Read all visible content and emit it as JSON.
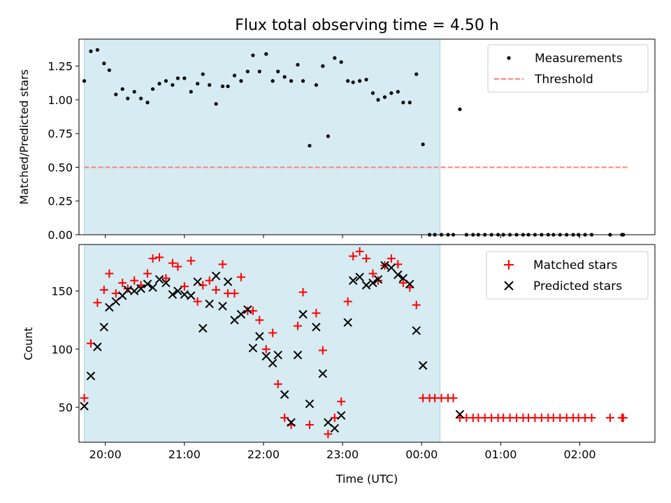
{
  "chart_data": [
    {
      "type": "scatter",
      "title": "Flux total observing time = 4.50 h",
      "xlabel": "",
      "ylabel": "Matched/Predicted stars",
      "ylim": [
        0,
        1.45
      ],
      "yticks": [
        0.0,
        0.25,
        0.5,
        0.75,
        1.0,
        1.25
      ],
      "ytick_labels": [
        "0.00",
        "0.25",
        "0.50",
        "0.75",
        "1.00",
        "1.25"
      ],
      "xlim": [
        "19:40",
        "02:57"
      ],
      "legend_position": "top-right",
      "observing_window": [
        "19:44",
        "00:14"
      ],
      "series": [
        {
          "name": "Measurements",
          "marker": "dot",
          "color": "#000000",
          "x": [
            "19:44",
            "19:49",
            "19:54",
            "19:59",
            "20:03",
            "20:08",
            "20:13",
            "20:17",
            "20:22",
            "20:27",
            "20:32",
            "20:36",
            "20:41",
            "20:46",
            "20:51",
            "20:55",
            "21:00",
            "21:05",
            "21:10",
            "21:14",
            "21:19",
            "21:24",
            "21:29",
            "21:33",
            "21:38",
            "21:43",
            "21:48",
            "21:52",
            "21:57",
            "22:02",
            "22:07",
            "22:11",
            "22:16",
            "22:21",
            "22:26",
            "22:30",
            "22:35",
            "22:40",
            "22:45",
            "22:49",
            "22:54",
            "22:59",
            "23:04",
            "23:08",
            "23:13",
            "23:18",
            "23:23",
            "23:27",
            "23:32",
            "23:37",
            "23:42",
            "23:46",
            "23:51",
            "23:56",
            "00:01",
            "00:06",
            "00:10",
            "00:15",
            "00:20",
            "00:24",
            "00:29",
            "00:34",
            "00:39",
            "00:43",
            "00:48",
            "00:53",
            "00:58",
            "01:02",
            "01:07",
            "01:12",
            "01:17",
            "01:21",
            "01:26",
            "01:31",
            "01:36",
            "01:40",
            "01:45",
            "01:50",
            "01:55",
            "01:59",
            "02:04",
            "02:09",
            "02:23",
            "02:32",
            "02:33"
          ],
          "values": [
            1.14,
            1.36,
            1.37,
            1.27,
            1.22,
            1.04,
            1.08,
            1.01,
            1.06,
            1.01,
            0.98,
            1.08,
            1.12,
            1.14,
            1.11,
            1.16,
            1.16,
            1.06,
            1.12,
            1.19,
            1.11,
            0.97,
            1.1,
            1.1,
            1.18,
            1.14,
            1.21,
            1.33,
            1.21,
            1.34,
            1.14,
            1.21,
            1.17,
            1.14,
            1.26,
            1.14,
            0.66,
            1.11,
            1.25,
            0.73,
            1.31,
            1.28,
            1.14,
            1.13,
            1.14,
            1.15,
            1.05,
            1.0,
            1.02,
            1.05,
            1.06,
            0.98,
            0.98,
            1.19,
            0.67,
            0.0,
            0.0,
            0.0,
            0.0,
            0.0,
            0.93,
            0.0,
            0.0,
            0.0,
            0.0,
            0.0,
            0.0,
            0.0,
            0.0,
            0.0,
            0.0,
            0.0,
            0.0,
            0.0,
            0.0,
            0.0,
            0.0,
            0.0,
            0.0,
            0.0,
            0.0,
            0.0,
            0.0,
            0.0,
            0.0
          ]
        },
        {
          "name": "Threshold",
          "marker": "dashed-line",
          "color": "#ff7f7f",
          "x": [
            "19:44",
            "02:36"
          ],
          "values": [
            0.5,
            0.5
          ]
        }
      ]
    },
    {
      "type": "scatter",
      "title": "",
      "xlabel": "Time (UTC)",
      "ylabel": "Count",
      "ylim": [
        20,
        190
      ],
      "yticks": [
        50,
        100,
        150
      ],
      "ytick_labels": [
        "50",
        "100",
        "150"
      ],
      "xticks": [
        "20:00",
        "21:00",
        "22:00",
        "23:00",
        "00:00",
        "01:00",
        "02:00"
      ],
      "xtick_labels": [
        "20:00",
        "21:00",
        "22:00",
        "23:00",
        "00:00",
        "01:00",
        "02:00"
      ],
      "xlim": [
        "19:40",
        "02:57"
      ],
      "legend_position": "top-right",
      "observing_window": [
        "19:44",
        "00:14"
      ],
      "series": [
        {
          "name": "Matched stars",
          "marker": "plus",
          "color": "#ff0000",
          "x": [
            "19:44",
            "19:49",
            "19:54",
            "19:59",
            "20:03",
            "20:08",
            "20:13",
            "20:17",
            "20:22",
            "20:27",
            "20:32",
            "20:36",
            "20:41",
            "20:46",
            "20:51",
            "20:55",
            "21:00",
            "21:05",
            "21:10",
            "21:14",
            "21:19",
            "21:24",
            "21:29",
            "21:33",
            "21:38",
            "21:43",
            "21:48",
            "21:52",
            "21:57",
            "22:02",
            "22:07",
            "22:11",
            "22:16",
            "22:21",
            "22:26",
            "22:30",
            "22:35",
            "22:40",
            "22:45",
            "22:49",
            "22:54",
            "22:59",
            "23:04",
            "23:08",
            "23:13",
            "23:18",
            "23:23",
            "23:27",
            "23:32",
            "23:37",
            "23:42",
            "23:46",
            "23:51",
            "23:56",
            "00:01",
            "00:06",
            "00:10",
            "00:15",
            "00:20",
            "00:24",
            "00:29",
            "00:34",
            "00:39",
            "00:43",
            "00:48",
            "00:53",
            "00:58",
            "01:02",
            "01:07",
            "01:12",
            "01:17",
            "01:21",
            "01:26",
            "01:31",
            "01:36",
            "01:40",
            "01:45",
            "01:50",
            "01:55",
            "01:59",
            "02:04",
            "02:09",
            "02:23",
            "02:32",
            "02:33"
          ],
          "values": [
            58,
            105,
            140,
            151,
            165,
            148,
            157,
            152,
            159,
            155,
            165,
            178,
            179,
            161,
            174,
            171,
            154,
            176,
            141,
            155,
            159,
            151,
            173,
            148,
            148,
            162,
            133,
            133,
            125,
            100,
            114,
            70,
            41,
            35,
            120,
            149,
            35,
            131,
            99,
            27,
            41,
            55,
            141,
            180,
            184,
            178,
            165,
            159,
            172,
            178,
            173,
            157,
            153,
            138,
            58,
            58,
            58,
            58,
            58,
            58,
            41,
            41,
            41,
            41,
            41,
            41,
            41,
            41,
            41,
            41,
            41,
            41,
            41,
            41,
            41,
            41,
            41,
            41,
            41,
            41,
            41,
            41,
            41,
            41,
            41
          ]
        },
        {
          "name": "Predicted stars",
          "marker": "x",
          "color": "#000000",
          "x": [
            "19:44",
            "19:49",
            "19:54",
            "19:59",
            "20:03",
            "20:08",
            "20:13",
            "20:17",
            "20:22",
            "20:27",
            "20:32",
            "20:36",
            "20:41",
            "20:46",
            "20:51",
            "20:55",
            "21:00",
            "21:05",
            "21:10",
            "21:14",
            "21:19",
            "21:24",
            "21:29",
            "21:33",
            "21:38",
            "21:43",
            "21:48",
            "21:52",
            "21:57",
            "22:02",
            "22:07",
            "22:11",
            "22:16",
            "22:21",
            "22:26",
            "22:30",
            "22:35",
            "22:40",
            "22:45",
            "22:49",
            "22:54",
            "22:59",
            "23:04",
            "23:08",
            "23:13",
            "23:18",
            "23:23",
            "23:27",
            "23:32",
            "23:37",
            "23:42",
            "23:46",
            "23:51",
            "23:56",
            "00:01",
            "00:06",
            "00:10",
            "00:15",
            "00:20",
            "00:24",
            "00:29",
            "00:34",
            "00:39",
            "00:43",
            "00:48",
            "00:53",
            "00:58",
            "01:02",
            "01:07",
            "01:12",
            "01:17",
            "01:21",
            "01:26",
            "01:31",
            "01:36",
            "01:40",
            "01:45",
            "01:50",
            "01:55",
            "01:59",
            "02:04",
            "02:09",
            "02:23",
            "02:32",
            "02:33"
          ],
          "values": [
            51,
            77,
            102,
            119,
            136,
            141,
            146,
            151,
            150,
            152,
            156,
            153,
            160,
            157,
            147,
            150,
            147,
            146,
            158,
            118,
            139,
            163,
            137,
            158,
            125,
            130,
            134,
            101,
            111,
            94,
            88,
            95,
            61,
            37,
            95,
            130,
            53,
            119,
            79,
            37,
            32,
            43,
            123,
            159,
            162,
            155,
            157,
            160,
            172,
            170,
            164,
            161,
            156,
            116,
            86,
            null,
            null,
            null,
            null,
            null,
            44,
            null,
            null,
            null,
            null,
            null,
            null,
            null,
            null,
            null,
            null,
            null,
            null,
            null,
            null,
            null,
            null,
            null,
            null,
            null,
            null,
            null,
            null,
            null,
            null
          ]
        }
      ]
    }
  ]
}
